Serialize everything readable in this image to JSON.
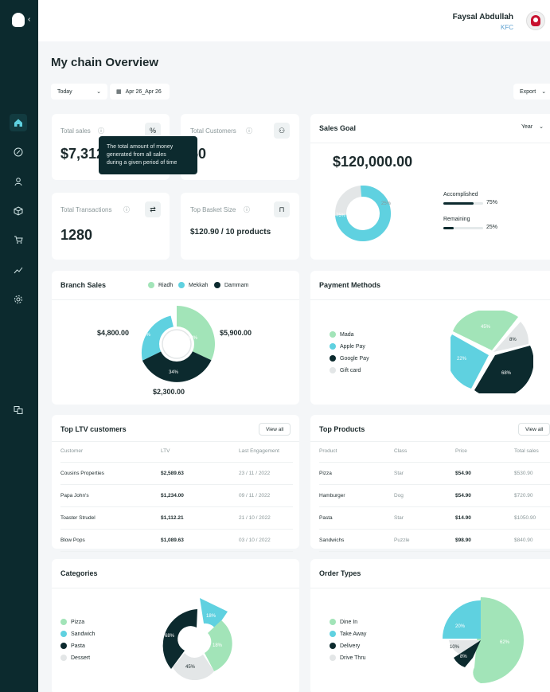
{
  "sidebar": {
    "collapse_icon": "chevron-left-icon"
  },
  "user": {
    "name": "Faysal Abdullah",
    "org": "KFC"
  },
  "page": {
    "title": "My chain Overview"
  },
  "filters": {
    "period": "Today",
    "date_range": "Apr 26_Apr 26",
    "export": "Export"
  },
  "kpis": {
    "total_sales": {
      "label": "Total sales",
      "value": "$7,312",
      "tooltip_lines": [
        "The total amount of money",
        "generated from all sales",
        "during a given period of time"
      ]
    },
    "total_customers": {
      "label": "Total Customers",
      "value": "50"
    },
    "total_transactions": {
      "label": "Total Transactions",
      "value": "1280"
    },
    "top_basket": {
      "label": "Top Basket Size",
      "value": "$120.90 / 10 products"
    }
  },
  "sales_goal": {
    "title": "Sales Goal",
    "period": "Year",
    "value": "$120,000.00",
    "accomplished": {
      "label": "Accomplished",
      "pct": "75%",
      "fraction": 0.75
    },
    "remaining": {
      "label": "Remaining",
      "pct": "25%",
      "fraction": 0.25
    },
    "donut_labels": [
      "75%",
      "25%"
    ]
  },
  "branch_sales": {
    "title": "Branch Sales",
    "legend": [
      "Riadh",
      "Mekkah",
      "Dammam"
    ],
    "values": {
      "riadh": "$5,900.00",
      "mekkah": "$4,800.00",
      "dammam": "$2,300.00"
    },
    "pcts": {
      "riadh": "32%",
      "mekkah": "28%",
      "dammam": "34%"
    }
  },
  "payment_methods": {
    "title": "Payment Methods",
    "legend": [
      "Mada",
      "Apple Pay",
      "Google Pay",
      "Gift card"
    ],
    "pcts": {
      "mada": "45%",
      "apple": "22%",
      "google": "68%",
      "gift": "8%"
    }
  },
  "ltv": {
    "title": "Top LTV customers",
    "view_all": "View all",
    "headers": [
      "Customer",
      "LTV",
      "Last Engagement"
    ],
    "rows": [
      [
        "Cousins Properties",
        "$2,589.63",
        "23 / 11 / 2022"
      ],
      [
        "Papa John's",
        "$1,234.00",
        "09 / 11 / 2022"
      ],
      [
        "Toaster Strudel",
        "$1,112.21",
        "21 / 10 / 2022"
      ],
      [
        "Blow Pops",
        "$1,089.63",
        "03 / 10 / 2022"
      ]
    ]
  },
  "products": {
    "title": "Top Products",
    "view_all": "View all",
    "headers": [
      "Product",
      "Class",
      "Price",
      "Total sales"
    ],
    "rows": [
      [
        "Pizza",
        "Star",
        "$54.90",
        "$530.90"
      ],
      [
        "Hamburger",
        "Dog",
        "$54.90",
        "$720.90"
      ],
      [
        "Pasta",
        "Star",
        "$14.90",
        "$1050.90"
      ],
      [
        "Sandwichs",
        "Puzzle",
        "$98.90",
        "$840.90"
      ]
    ]
  },
  "categories": {
    "title": "Categories",
    "legend": [
      "Pizza",
      "Sandwich",
      "Pasta",
      "Dessert"
    ],
    "pcts": {
      "s1": "18%",
      "s2": "18%",
      "s3": "45%",
      "s4": "68%"
    }
  },
  "order_types": {
    "title": "Order Types",
    "legend": [
      "Dine In",
      "Take Away",
      "Delivery",
      "Drive Thru"
    ],
    "pcts": {
      "dine": "62%",
      "take": "20%",
      "deliv": "8%",
      "drive": "10%"
    }
  },
  "colors": {
    "dark": "#0c2a2e",
    "teal": "#5fd1e0",
    "mint": "#a2e4b8",
    "grey": "#e3e6e7"
  }
}
